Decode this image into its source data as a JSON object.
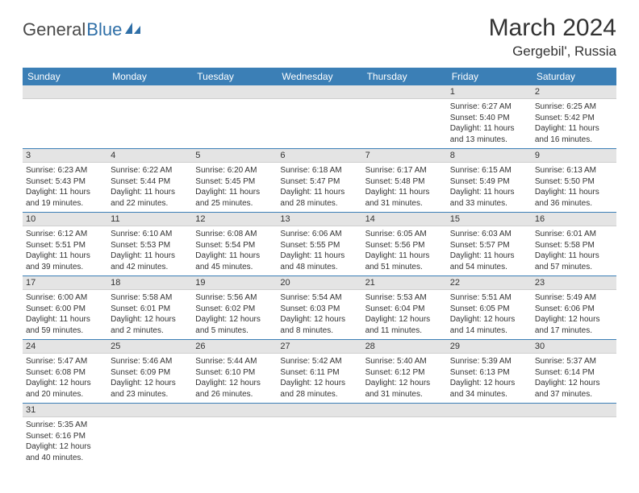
{
  "logo": {
    "text1": "General",
    "text2": "Blue"
  },
  "title": "March 2024",
  "location": "Gergebil', Russia",
  "colors": {
    "header_bg": "#3b7fb6",
    "header_text": "#ffffff",
    "daynum_bg": "#e4e4e4",
    "row_border": "#3b7fb6",
    "logo_gray": "#4a4a4a",
    "logo_blue": "#2f6fa7"
  },
  "weekdays": [
    "Sunday",
    "Monday",
    "Tuesday",
    "Wednesday",
    "Thursday",
    "Friday",
    "Saturday"
  ],
  "weeks": [
    [
      {
        "n": "",
        "sr": "",
        "ss": "",
        "dl": ""
      },
      {
        "n": "",
        "sr": "",
        "ss": "",
        "dl": ""
      },
      {
        "n": "",
        "sr": "",
        "ss": "",
        "dl": ""
      },
      {
        "n": "",
        "sr": "",
        "ss": "",
        "dl": ""
      },
      {
        "n": "",
        "sr": "",
        "ss": "",
        "dl": ""
      },
      {
        "n": "1",
        "sr": "Sunrise: 6:27 AM",
        "ss": "Sunset: 5:40 PM",
        "dl": "Daylight: 11 hours and 13 minutes."
      },
      {
        "n": "2",
        "sr": "Sunrise: 6:25 AM",
        "ss": "Sunset: 5:42 PM",
        "dl": "Daylight: 11 hours and 16 minutes."
      }
    ],
    [
      {
        "n": "3",
        "sr": "Sunrise: 6:23 AM",
        "ss": "Sunset: 5:43 PM",
        "dl": "Daylight: 11 hours and 19 minutes."
      },
      {
        "n": "4",
        "sr": "Sunrise: 6:22 AM",
        "ss": "Sunset: 5:44 PM",
        "dl": "Daylight: 11 hours and 22 minutes."
      },
      {
        "n": "5",
        "sr": "Sunrise: 6:20 AM",
        "ss": "Sunset: 5:45 PM",
        "dl": "Daylight: 11 hours and 25 minutes."
      },
      {
        "n": "6",
        "sr": "Sunrise: 6:18 AM",
        "ss": "Sunset: 5:47 PM",
        "dl": "Daylight: 11 hours and 28 minutes."
      },
      {
        "n": "7",
        "sr": "Sunrise: 6:17 AM",
        "ss": "Sunset: 5:48 PM",
        "dl": "Daylight: 11 hours and 31 minutes."
      },
      {
        "n": "8",
        "sr": "Sunrise: 6:15 AM",
        "ss": "Sunset: 5:49 PM",
        "dl": "Daylight: 11 hours and 33 minutes."
      },
      {
        "n": "9",
        "sr": "Sunrise: 6:13 AM",
        "ss": "Sunset: 5:50 PM",
        "dl": "Daylight: 11 hours and 36 minutes."
      }
    ],
    [
      {
        "n": "10",
        "sr": "Sunrise: 6:12 AM",
        "ss": "Sunset: 5:51 PM",
        "dl": "Daylight: 11 hours and 39 minutes."
      },
      {
        "n": "11",
        "sr": "Sunrise: 6:10 AM",
        "ss": "Sunset: 5:53 PM",
        "dl": "Daylight: 11 hours and 42 minutes."
      },
      {
        "n": "12",
        "sr": "Sunrise: 6:08 AM",
        "ss": "Sunset: 5:54 PM",
        "dl": "Daylight: 11 hours and 45 minutes."
      },
      {
        "n": "13",
        "sr": "Sunrise: 6:06 AM",
        "ss": "Sunset: 5:55 PM",
        "dl": "Daylight: 11 hours and 48 minutes."
      },
      {
        "n": "14",
        "sr": "Sunrise: 6:05 AM",
        "ss": "Sunset: 5:56 PM",
        "dl": "Daylight: 11 hours and 51 minutes."
      },
      {
        "n": "15",
        "sr": "Sunrise: 6:03 AM",
        "ss": "Sunset: 5:57 PM",
        "dl": "Daylight: 11 hours and 54 minutes."
      },
      {
        "n": "16",
        "sr": "Sunrise: 6:01 AM",
        "ss": "Sunset: 5:58 PM",
        "dl": "Daylight: 11 hours and 57 minutes."
      }
    ],
    [
      {
        "n": "17",
        "sr": "Sunrise: 6:00 AM",
        "ss": "Sunset: 6:00 PM",
        "dl": "Daylight: 11 hours and 59 minutes."
      },
      {
        "n": "18",
        "sr": "Sunrise: 5:58 AM",
        "ss": "Sunset: 6:01 PM",
        "dl": "Daylight: 12 hours and 2 minutes."
      },
      {
        "n": "19",
        "sr": "Sunrise: 5:56 AM",
        "ss": "Sunset: 6:02 PM",
        "dl": "Daylight: 12 hours and 5 minutes."
      },
      {
        "n": "20",
        "sr": "Sunrise: 5:54 AM",
        "ss": "Sunset: 6:03 PM",
        "dl": "Daylight: 12 hours and 8 minutes."
      },
      {
        "n": "21",
        "sr": "Sunrise: 5:53 AM",
        "ss": "Sunset: 6:04 PM",
        "dl": "Daylight: 12 hours and 11 minutes."
      },
      {
        "n": "22",
        "sr": "Sunrise: 5:51 AM",
        "ss": "Sunset: 6:05 PM",
        "dl": "Daylight: 12 hours and 14 minutes."
      },
      {
        "n": "23",
        "sr": "Sunrise: 5:49 AM",
        "ss": "Sunset: 6:06 PM",
        "dl": "Daylight: 12 hours and 17 minutes."
      }
    ],
    [
      {
        "n": "24",
        "sr": "Sunrise: 5:47 AM",
        "ss": "Sunset: 6:08 PM",
        "dl": "Daylight: 12 hours and 20 minutes."
      },
      {
        "n": "25",
        "sr": "Sunrise: 5:46 AM",
        "ss": "Sunset: 6:09 PM",
        "dl": "Daylight: 12 hours and 23 minutes."
      },
      {
        "n": "26",
        "sr": "Sunrise: 5:44 AM",
        "ss": "Sunset: 6:10 PM",
        "dl": "Daylight: 12 hours and 26 minutes."
      },
      {
        "n": "27",
        "sr": "Sunrise: 5:42 AM",
        "ss": "Sunset: 6:11 PM",
        "dl": "Daylight: 12 hours and 28 minutes."
      },
      {
        "n": "28",
        "sr": "Sunrise: 5:40 AM",
        "ss": "Sunset: 6:12 PM",
        "dl": "Daylight: 12 hours and 31 minutes."
      },
      {
        "n": "29",
        "sr": "Sunrise: 5:39 AM",
        "ss": "Sunset: 6:13 PM",
        "dl": "Daylight: 12 hours and 34 minutes."
      },
      {
        "n": "30",
        "sr": "Sunrise: 5:37 AM",
        "ss": "Sunset: 6:14 PM",
        "dl": "Daylight: 12 hours and 37 minutes."
      }
    ],
    [
      {
        "n": "31",
        "sr": "Sunrise: 5:35 AM",
        "ss": "Sunset: 6:16 PM",
        "dl": "Daylight: 12 hours and 40 minutes."
      },
      {
        "n": "",
        "sr": "",
        "ss": "",
        "dl": ""
      },
      {
        "n": "",
        "sr": "",
        "ss": "",
        "dl": ""
      },
      {
        "n": "",
        "sr": "",
        "ss": "",
        "dl": ""
      },
      {
        "n": "",
        "sr": "",
        "ss": "",
        "dl": ""
      },
      {
        "n": "",
        "sr": "",
        "ss": "",
        "dl": ""
      },
      {
        "n": "",
        "sr": "",
        "ss": "",
        "dl": ""
      }
    ]
  ]
}
